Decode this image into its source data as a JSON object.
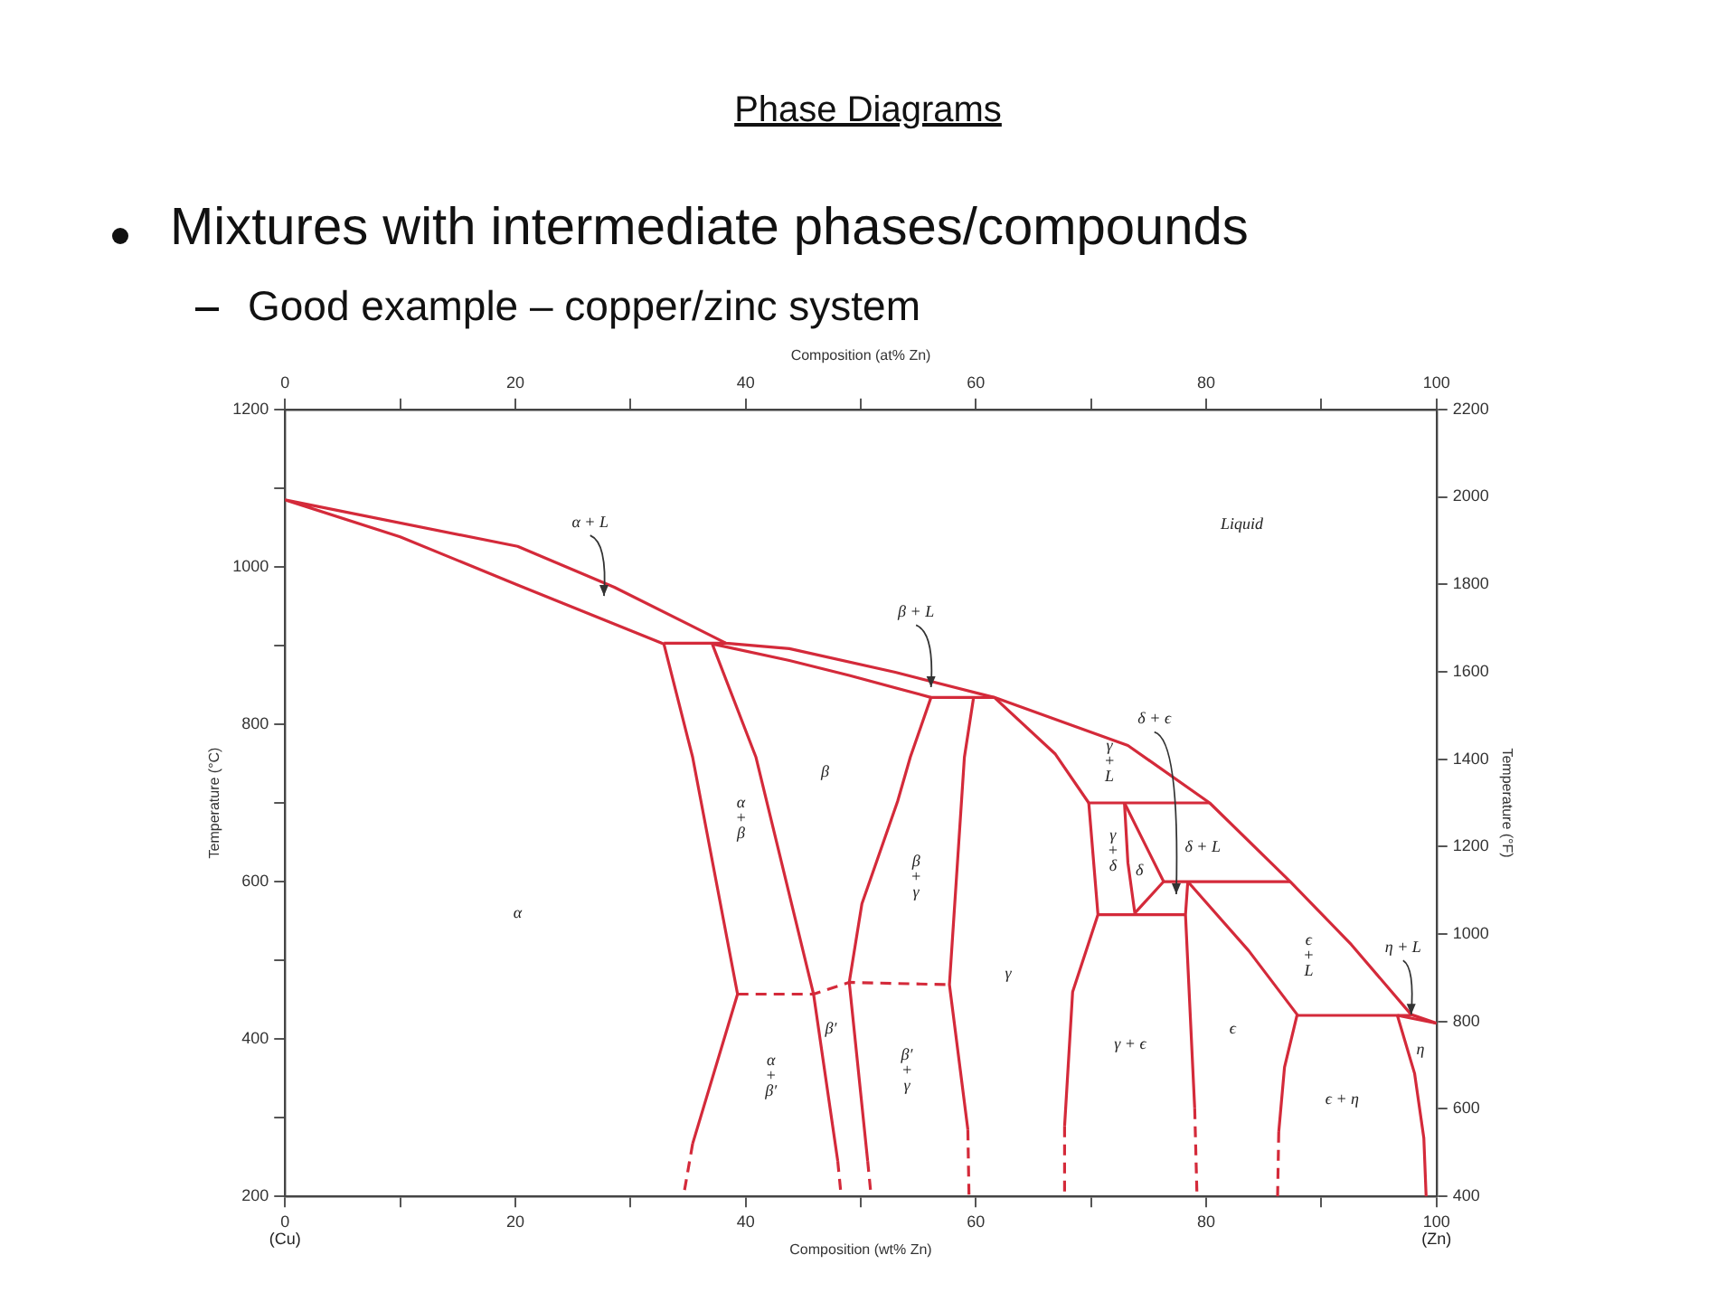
{
  "chart_data": {
    "type": "line",
    "title": "Phase Diagrams",
    "subtitle": "Mixtures with intermediate phases/compounds",
    "xlabel": "Composition (wt% Zn)",
    "x2label": "Composition (at% Zn)",
    "ylabel": "Temperature (°C)",
    "y2label": "Temperature (°F)",
    "xlim": [
      0,
      100
    ],
    "xticks": [
      0,
      {
        "value": 10,
        "label": null
      },
      20,
      {
        "value": 30,
        "label": null
      },
      40,
      {
        "value": 50,
        "label": null
      },
      60,
      {
        "value": 70,
        "label": null
      },
      80,
      {
        "value": 90,
        "label": null
      },
      100
    ],
    "x2lim": [
      0,
      100
    ],
    "x2ticks": [
      0,
      {
        "value": 10,
        "label": null
      },
      20,
      {
        "value": 30,
        "label": null
      },
      40,
      {
        "value": 50,
        "label": null
      },
      60,
      {
        "value": 70,
        "label": null
      },
      80,
      {
        "value": 90,
        "label": null
      },
      100
    ],
    "ylim": [
      200,
      1200
    ],
    "yticks": [
      200,
      {
        "value": 300,
        "label": null
      },
      400,
      {
        "value": 500,
        "label": null
      },
      600,
      {
        "value": 700,
        "label": null
      },
      800,
      {
        "value": 900,
        "label": null
      },
      1000,
      {
        "value": 1100,
        "label": null
      },
      1200
    ],
    "y2lim": [
      400,
      2200
    ],
    "y2ticks": [
      400,
      600,
      800,
      1000,
      1200,
      1400,
      1600,
      1800,
      2000,
      2200
    ],
    "grid": false,
    "legend": false,
    "marker": "none",
    "line_style": "solid",
    "series": [
      {
        "color": "#d42a3a",
        "x": [
          100,
          97.8,
          92.6,
          87.3,
          80.3,
          73.2,
          61.6,
          53,
          43.8,
          38.3,
          28.6,
          20.2,
          0,
          10,
          20.2,
          32.9,
          35.4,
          39.3,
          35.4
        ],
        "values": [
          420,
          431,
          520,
          600,
          700,
          773,
          834,
          866,
          896,
          903,
          974,
          1026,
          1085,
          1038,
          977,
          902,
          758,
          457,
          267
        ]
      },
      {
        "color": "#d42a3a",
        "line_style": "dashed",
        "x": [
          35.4,
          34.6
        ],
        "values": [
          267,
          200
        ]
      },
      {
        "color": "#d42a3a",
        "x": [
          32.9,
          38.3
        ],
        "values": [
          903,
          903
        ]
      },
      {
        "color": "#d42a3a",
        "x": [
          56.1,
          49,
          43.8,
          37.1,
          40.9,
          45.9,
          48
        ],
        "values": [
          834,
          862,
          881,
          902,
          758,
          457,
          245
        ]
      },
      {
        "color": "#d42a3a",
        "line_style": "dashed",
        "x": [
          48,
          48.3
        ],
        "values": [
          245,
          200
        ]
      },
      {
        "color": "#d42a3a",
        "line_style": "dashed",
        "x": [
          39.3,
          45.9,
          49,
          57.7
        ],
        "values": [
          457,
          457,
          472,
          469
        ]
      },
      {
        "color": "#d42a3a",
        "x": [
          50.6,
          49,
          50.1,
          53.2,
          54.3,
          56.1,
          61.6,
          66.9,
          69.8,
          80.3
        ],
        "values": [
          245,
          472,
          572,
          702,
          758,
          834,
          834,
          762,
          700,
          700
        ]
      },
      {
        "color": "#d42a3a",
        "line_style": "dashed",
        "x": [
          50.6,
          50.9
        ],
        "values": [
          245,
          200
        ]
      },
      {
        "color": "#d42a3a",
        "x": [
          59.8,
          59,
          57.7,
          59.3
        ],
        "values": [
          834,
          758,
          469,
          285
        ]
      },
      {
        "color": "#d42a3a",
        "line_style": "dashed",
        "x": [
          59.3,
          59.4
        ],
        "values": [
          285,
          200
        ]
      },
      {
        "color": "#d42a3a",
        "x": [
          69.8,
          70.6,
          68.4,
          67.7
        ],
        "values": [
          700,
          558,
          460,
          289
        ]
      },
      {
        "color": "#d42a3a",
        "line_style": "dashed",
        "x": [
          67.7,
          67.7
        ],
        "values": [
          289,
          200
        ]
      },
      {
        "color": "#d42a3a",
        "x": [
          70.6,
          78.2
        ],
        "values": [
          558,
          558
        ]
      },
      {
        "color": "#d42a3a",
        "x": [
          72.9,
          73.2,
          73.8
        ],
        "values": [
          700,
          624,
          560
        ]
      },
      {
        "color": "#d42a3a",
        "x": [
          72.9,
          76.3,
          73.8
        ],
        "values": [
          700,
          600,
          560
        ]
      },
      {
        "color": "#d42a3a",
        "x": [
          76.3,
          87.3
        ],
        "values": [
          600,
          600
        ]
      },
      {
        "color": "#d42a3a",
        "x": [
          78.4,
          78.2,
          79
        ],
        "values": [
          600,
          558,
          312
        ]
      },
      {
        "color": "#d42a3a",
        "x": [
          78.4,
          83.7,
          87.9,
          86.8,
          86.3
        ],
        "values": [
          600,
          512,
          431,
          364,
          282
        ]
      },
      {
        "color": "#d42a3a",
        "line_style": "dashed",
        "x": [
          79,
          79.2
        ],
        "values": [
          312,
          200
        ]
      },
      {
        "color": "#d42a3a",
        "line_style": "dashed",
        "x": [
          86.3,
          86.2
        ],
        "values": [
          282,
          200
        ]
      },
      {
        "color": "#d42a3a",
        "x": [
          87.9,
          97.8
        ],
        "values": [
          430,
          430
        ]
      },
      {
        "color": "#d42a3a",
        "x": [
          96.6,
          98.1,
          98.9,
          99.1
        ],
        "values": [
          430,
          356,
          274,
          200
        ]
      },
      {
        "color": "#d42a3a",
        "x": [
          96.6,
          100
        ],
        "values": [
          430,
          420
        ]
      }
    ],
    "annotations": [
      "Good example – copper/zinc system",
      "(Cu)",
      "(Zn)",
      "α + L",
      "Liquid",
      {
        "text": "β + L",
        "x": 56.1,
        "y": 847
      },
      "δ + ϵ",
      "γ\n+\nL",
      "β",
      "α\n+\nβ",
      "α",
      "α\n+\nβ′",
      "β′",
      "β\n+\nγ",
      "β′\n+\nγ",
      "γ",
      "γ\n+\nδ",
      "δ",
      "δ + L",
      "ϵ\n+\nL",
      {
        "text": "η + L",
        "x": 97.8,
        "y": 431
      },
      "γ + ϵ",
      "ϵ",
      "η",
      "ϵ + η"
    ]
  }
}
